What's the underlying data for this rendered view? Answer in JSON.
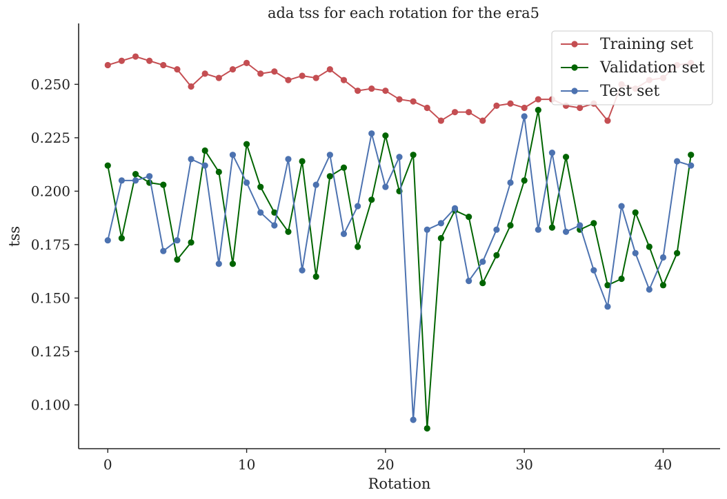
{
  "chart_data": {
    "type": "line",
    "title": "ada tss for each rotation for the era5",
    "xlabel": "Rotation",
    "ylabel": "tss",
    "xlim": [
      -2.1,
      44.1
    ],
    "ylim": [
      0.0795,
      0.2785
    ],
    "xticks": [
      0,
      10,
      20,
      30,
      40
    ],
    "yticks": [
      0.1,
      0.125,
      0.15,
      0.175,
      0.2,
      0.225,
      0.25
    ],
    "xtick_labels": [
      "0",
      "10",
      "20",
      "30",
      "40"
    ],
    "ytick_labels": [
      "0.100",
      "0.125",
      "0.150",
      "0.175",
      "0.200",
      "0.225",
      "0.250"
    ],
    "grid": false,
    "legend_position": "top-right",
    "x": [
      0,
      1,
      2,
      3,
      4,
      5,
      6,
      7,
      8,
      9,
      10,
      11,
      12,
      13,
      14,
      15,
      16,
      17,
      18,
      19,
      20,
      21,
      22,
      23,
      24,
      25,
      26,
      27,
      28,
      29,
      30,
      31,
      32,
      33,
      34,
      35,
      36,
      37,
      38,
      39,
      40,
      41,
      42
    ],
    "series": [
      {
        "name": "Training set",
        "color": "#c44e52",
        "values": [
          0.259,
          0.261,
          0.263,
          0.261,
          0.259,
          0.257,
          0.249,
          0.255,
          0.253,
          0.257,
          0.26,
          0.255,
          0.256,
          0.252,
          0.254,
          0.253,
          0.257,
          0.252,
          0.247,
          0.248,
          0.247,
          0.243,
          0.242,
          0.239,
          0.233,
          0.237,
          0.237,
          0.233,
          0.24,
          0.241,
          0.239,
          0.243,
          0.243,
          0.24,
          0.239,
          0.241,
          0.233,
          0.25,
          0.248,
          0.252,
          0.253,
          0.259,
          0.26
        ]
      },
      {
        "name": "Validation set",
        "color": "#006400",
        "values": [
          0.212,
          0.178,
          0.208,
          0.204,
          0.203,
          0.168,
          0.176,
          0.219,
          0.209,
          0.166,
          0.222,
          0.202,
          0.19,
          0.181,
          0.214,
          0.16,
          0.207,
          0.211,
          0.174,
          0.196,
          0.226,
          0.2,
          0.217,
          0.089,
          0.178,
          0.191,
          0.188,
          0.157,
          0.17,
          0.184,
          0.205,
          0.238,
          0.183,
          0.216,
          0.182,
          0.185,
          0.156,
          0.159,
          0.19,
          0.174,
          0.156,
          0.171,
          0.217
        ]
      },
      {
        "name": "Test set",
        "color": "#4c72b0",
        "values": [
          0.177,
          0.205,
          0.205,
          0.207,
          0.172,
          0.177,
          0.215,
          0.212,
          0.166,
          0.217,
          0.204,
          0.19,
          0.184,
          0.215,
          0.163,
          0.203,
          0.217,
          0.18,
          0.193,
          0.227,
          0.202,
          0.216,
          0.093,
          0.182,
          0.185,
          0.192,
          0.158,
          0.167,
          0.182,
          0.204,
          0.235,
          0.182,
          0.218,
          0.181,
          0.184,
          0.163,
          0.146,
          0.193,
          0.171,
          0.154,
          0.169,
          0.214,
          0.212
        ]
      }
    ]
  }
}
